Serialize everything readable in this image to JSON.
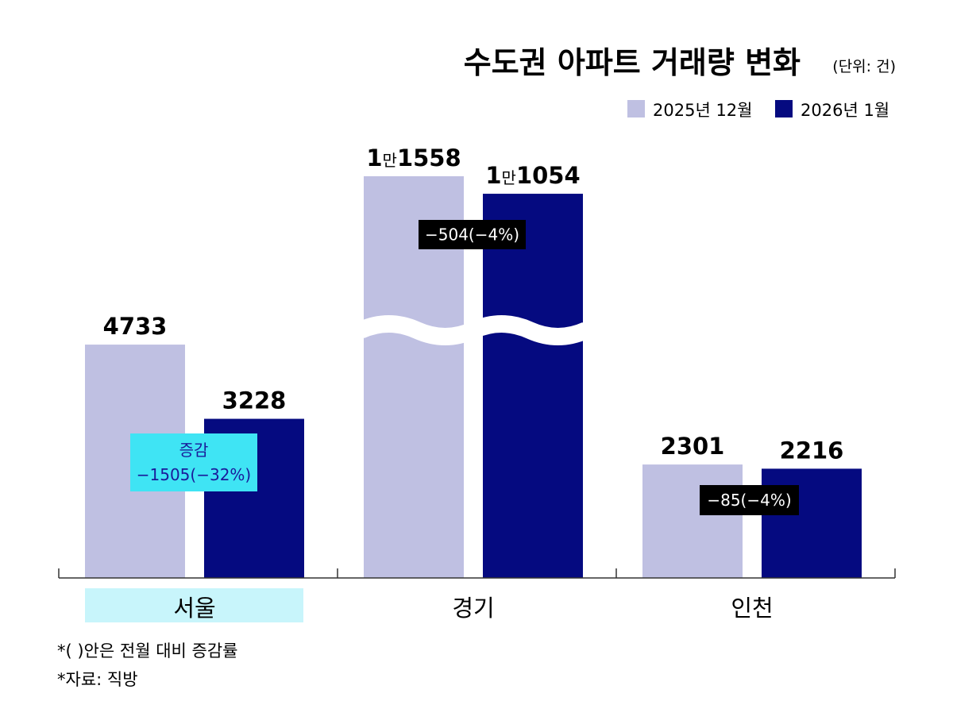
{
  "chart_data": {
    "type": "bar",
    "title": "수도권 아파트 거래량 변화",
    "unit": "(단위: 건)",
    "categories": [
      "서울",
      "경기",
      "인천"
    ],
    "series": [
      {
        "name": "2025년 12월",
        "values": [
          4733,
          11558,
          2301
        ],
        "labels": [
          "4733",
          "1만1558",
          "2301"
        ]
      },
      {
        "name": "2026년 1월",
        "values": [
          3228,
          11054,
          2216
        ],
        "labels": [
          "3228",
          "1만1054",
          "2216"
        ]
      }
    ],
    "changes": [
      {
        "heading": "증감",
        "text": "−1505(−32%)"
      },
      {
        "text": "−504(−4%)"
      },
      {
        "text": "−85(−4%)"
      }
    ],
    "axis_break": "경기",
    "highlighted_category": "서울",
    "legend_position": "top-right",
    "grid": false,
    "colors": {
      "series_0": "#bfc0e2",
      "series_1": "#050a80",
      "highlight_box": "#3fe4f4",
      "highlight_category_bg": "#c8f5fb",
      "change_box": "#000000"
    },
    "notes": [
      "*( )안은 전월 대비 증감률",
      "*자료: 직방"
    ]
  }
}
